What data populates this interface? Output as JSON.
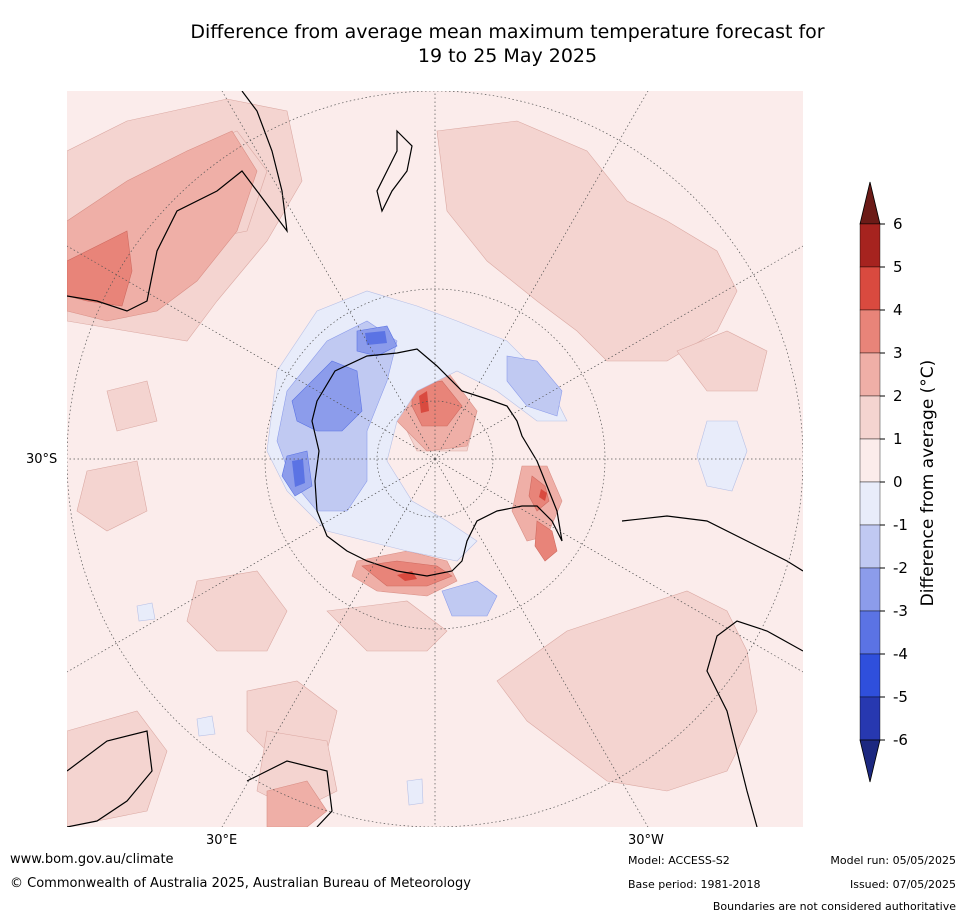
{
  "title_line1": "Difference from average mean maximum temperature forecast for",
  "title_line2": "19 to 25 May 2025",
  "map": {
    "latitude_label": "30°S",
    "longitude_left": "30°E",
    "longitude_right": "30°W",
    "background_color": "#fbeceb",
    "coastline_color": "#000000",
    "gridline_color": "#555555"
  },
  "colorbar": {
    "title": "Difference from average (°C)",
    "tick_labels": [
      "6",
      "5",
      "4",
      "3",
      "2",
      "1",
      "0",
      "-1",
      "-2",
      "-3",
      "-4",
      "-5",
      "-6"
    ],
    "bins_colors": [
      "#a6231f",
      "#d94a3f",
      "#e88479",
      "#efafa7",
      "#f4d4d0",
      "#fbeceb",
      "#e8ecfa",
      "#c0c9f2",
      "#8c9ceb",
      "#5b73e4",
      "#2f4fdc",
      "#2738b0"
    ],
    "upper_extend_color": "#6b1b17",
    "lower_extend_color": "#1c2880"
  },
  "footer": {
    "website": "www.bom.gov.au/climate",
    "copyright": "© Commonwealth of Australia 2025, Australian Bureau of Meteorology",
    "model": "Model: ACCESS-S2",
    "base_period": "Base period: 1981-2018",
    "model_run": "Model run: 05/05/2025",
    "issued": "Issued: 07/05/2025",
    "disclaimer": "Boundaries are not considered authoritative"
  }
}
